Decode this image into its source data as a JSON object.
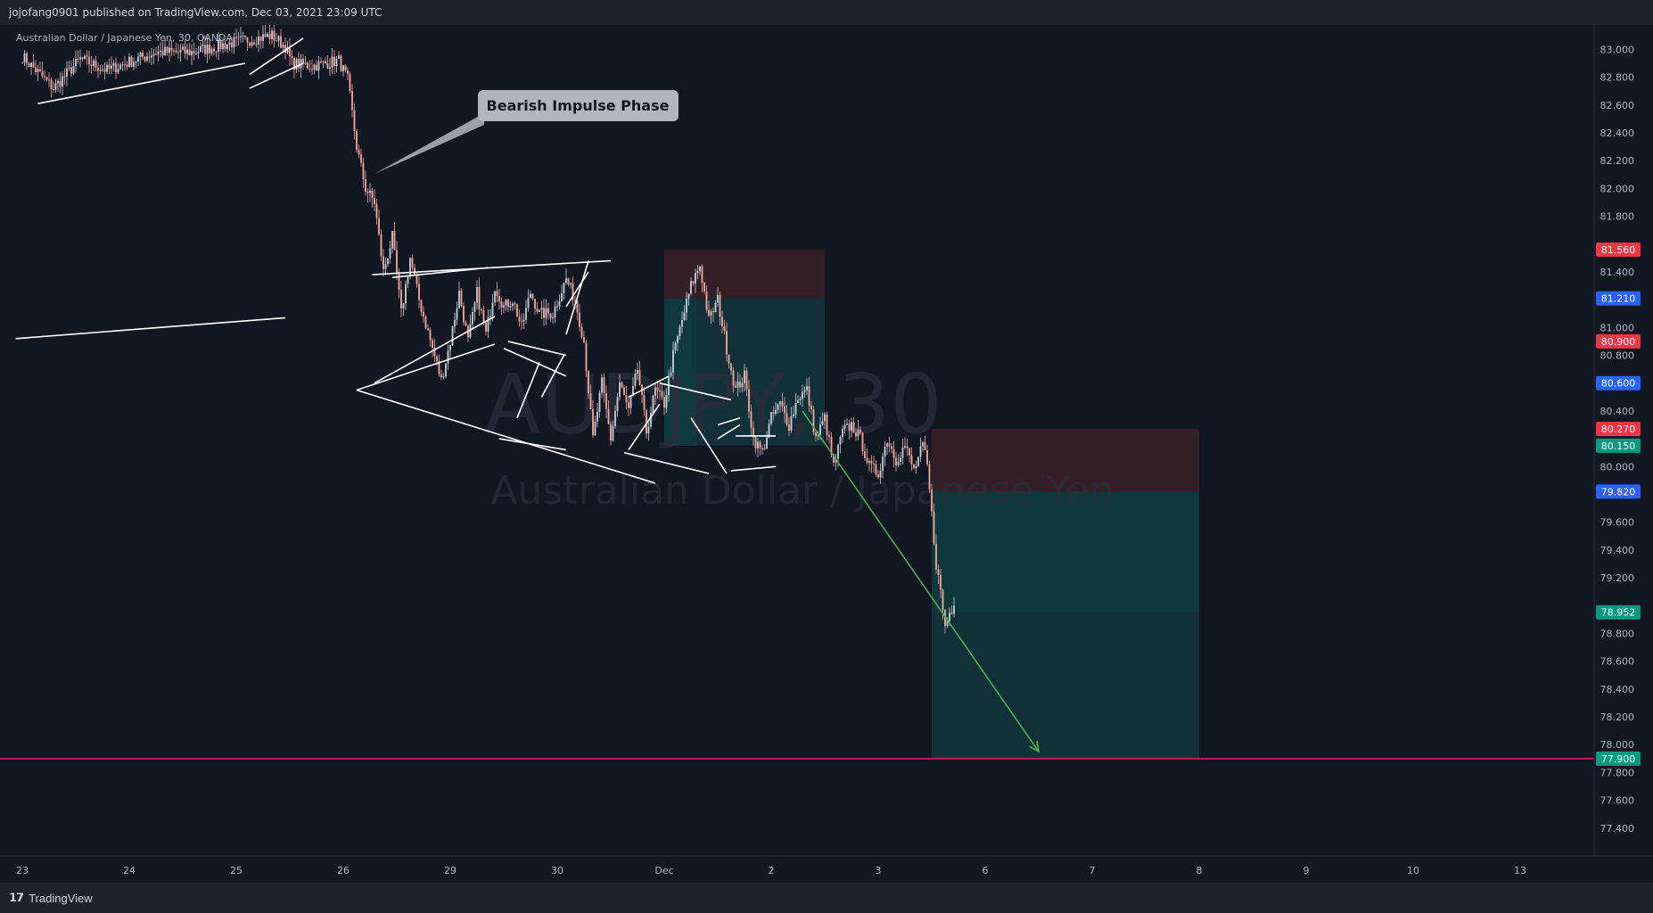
{
  "header": {
    "published_text": "jojofang0901 published on TradingView.com, Dec 03, 2021 23:09 UTC"
  },
  "footer": {
    "brand": "TradingView",
    "brand_icon": "tradingview-logo-icon"
  },
  "colors": {
    "background": "#131722",
    "bull": "#c9cfd8",
    "bear": "#f4a8a0",
    "target_line": "#e91e63",
    "stop_zone": "#3a2028",
    "profit_zone": "#12333a",
    "arrow": "#4caf50",
    "price_red": "#f23645",
    "price_blue": "#2962ff",
    "price_teal": "#089981"
  },
  "chart_data": {
    "type": "candlestick",
    "legend": "Australian Dollar / Japanese Yen, 30, OANDA",
    "watermark": {
      "symbol": "AUDJPY, 30",
      "description": "Australian Dollar / Japanese Yen"
    },
    "annotation": {
      "text": "Bearish Impulse Phase"
    },
    "y_axis": {
      "ylim": [
        77.2,
        83.15
      ],
      "ticks": [
        "83.000",
        "82.800",
        "82.600",
        "82.400",
        "82.200",
        "82.000",
        "81.800",
        "81.400",
        "81.000",
        "80.800",
        "80.400",
        "80.000",
        "79.600",
        "79.400",
        "79.200",
        "78.800",
        "78.600",
        "78.400",
        "78.200",
        "78.000",
        "77.800",
        "77.600",
        "77.400"
      ]
    },
    "x_axis": {
      "ticks": [
        {
          "label": "23",
          "bar": 0
        },
        {
          "label": "24",
          "bar": 48
        },
        {
          "label": "25",
          "bar": 96
        },
        {
          "label": "26",
          "bar": 144
        },
        {
          "label": "29",
          "bar": 192
        },
        {
          "label": "30",
          "bar": 240
        },
        {
          "label": "Dec",
          "bar": 288
        },
        {
          "label": "2",
          "bar": 336
        },
        {
          "label": "3",
          "bar": 384
        },
        {
          "label": "6",
          "bar": 432
        },
        {
          "label": "7",
          "bar": 480
        },
        {
          "label": "8",
          "bar": 528
        },
        {
          "label": "9",
          "bar": 576
        },
        {
          "label": "10",
          "bar": 624
        },
        {
          "label": "13",
          "bar": 672
        }
      ]
    },
    "price_anchors": [
      [
        0,
        82.95
      ],
      [
        14,
        82.72
      ],
      [
        26,
        82.93
      ],
      [
        38,
        82.85
      ],
      [
        60,
        82.98
      ],
      [
        76,
        82.98
      ],
      [
        95,
        83.05
      ],
      [
        112,
        83.1
      ],
      [
        118,
        83.02
      ],
      [
        121,
        82.9
      ],
      [
        130,
        82.88
      ],
      [
        142,
        82.92
      ],
      [
        146,
        82.78
      ],
      [
        150,
        82.3
      ],
      [
        154,
        82.0
      ],
      [
        158,
        81.9
      ],
      [
        162,
        81.4
      ],
      [
        166,
        81.65
      ],
      [
        170,
        81.1
      ],
      [
        174,
        81.5
      ],
      [
        178,
        81.2
      ],
      [
        184,
        80.85
      ],
      [
        188,
        80.62
      ],
      [
        192,
        80.9
      ],
      [
        196,
        81.25
      ],
      [
        200,
        80.9
      ],
      [
        204,
        81.25
      ],
      [
        208,
        80.95
      ],
      [
        212,
        81.3
      ],
      [
        216,
        81.15
      ],
      [
        220,
        81.2
      ],
      [
        224,
        81.0
      ],
      [
        228,
        81.25
      ],
      [
        232,
        81.1
      ],
      [
        238,
        81.1
      ],
      [
        244,
        81.35
      ],
      [
        248,
        81.2
      ],
      [
        252,
        80.9
      ],
      [
        256,
        80.2
      ],
      [
        260,
        80.6
      ],
      [
        264,
        80.2
      ],
      [
        268,
        80.6
      ],
      [
        272,
        80.4
      ],
      [
        276,
        80.7
      ],
      [
        280,
        80.25
      ],
      [
        284,
        80.55
      ],
      [
        288,
        80.45
      ],
      [
        292,
        80.8
      ],
      [
        296,
        81.05
      ],
      [
        300,
        81.3
      ],
      [
        304,
        81.45
      ],
      [
        308,
        81.05
      ],
      [
        312,
        81.2
      ],
      [
        316,
        80.85
      ],
      [
        320,
        80.55
      ],
      [
        324,
        80.65
      ],
      [
        328,
        80.2
      ],
      [
        332,
        80.1
      ],
      [
        336,
        80.35
      ],
      [
        340,
        80.45
      ],
      [
        344,
        80.3
      ],
      [
        348,
        80.5
      ],
      [
        352,
        80.55
      ],
      [
        356,
        80.2
      ],
      [
        360,
        80.35
      ],
      [
        364,
        80.0
      ],
      [
        368,
        80.25
      ],
      [
        372,
        80.3
      ],
      [
        376,
        80.2
      ],
      [
        380,
        80.0
      ],
      [
        384,
        79.95
      ],
      [
        388,
        80.2
      ],
      [
        392,
        80.05
      ],
      [
        396,
        80.15
      ],
      [
        400,
        79.97
      ],
      [
        404,
        80.15
      ],
      [
        406,
        80.0
      ],
      [
        408,
        79.65
      ],
      [
        410,
        79.3
      ],
      [
        412,
        79.1
      ],
      [
        414,
        78.85
      ],
      [
        416,
        78.95
      ],
      [
        418,
        79.0
      ]
    ],
    "levels": {
      "target_line": 77.9,
      "trade_old": {
        "stop": 81.56,
        "entry": 81.21,
        "target": 80.15,
        "bar_start": 288,
        "bar_end": 360
      },
      "trade_new": {
        "stop": 80.27,
        "entry": 79.82,
        "profit_mark": 78.952,
        "target": 77.9,
        "bar_start": 408,
        "bar_end": 528
      }
    },
    "price_labels": [
      {
        "value": "81.560",
        "kind": "red"
      },
      {
        "value": "81.210",
        "kind": "blue"
      },
      {
        "value": "80.900",
        "kind": "red"
      },
      {
        "value": "80.600",
        "kind": "blue"
      },
      {
        "value": "80.270",
        "kind": "red"
      },
      {
        "value": "80.150",
        "kind": "teal"
      },
      {
        "value": "79.820",
        "kind": "blue"
      },
      {
        "value": "78.952",
        "kind": "teal"
      },
      {
        "value": "77.900",
        "kind": "teal"
      }
    ]
  }
}
